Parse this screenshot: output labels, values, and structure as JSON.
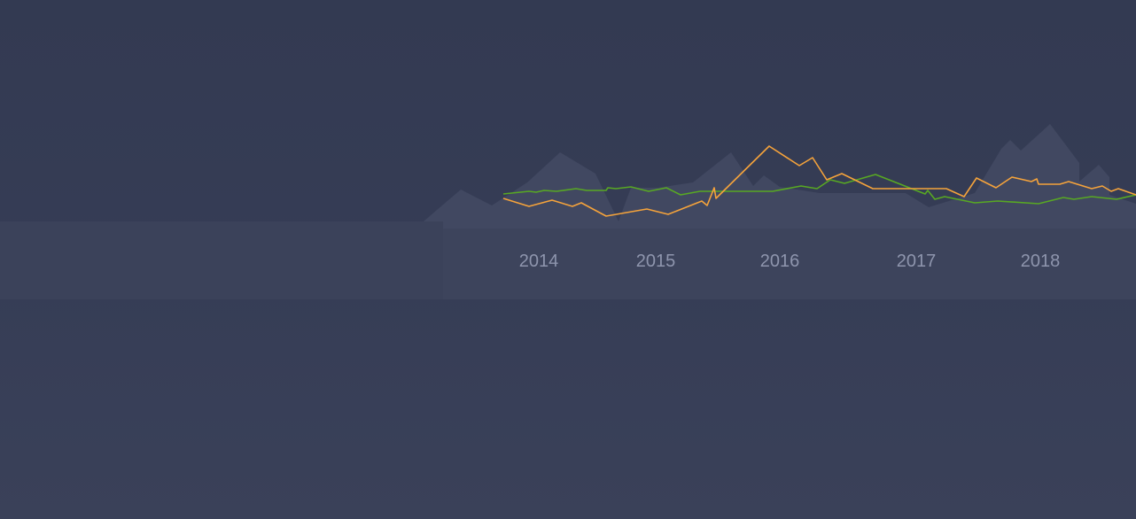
{
  "colors": {
    "background": "#343b53",
    "band": "#3a4159",
    "area": "#414861",
    "series_orange": "#f5a33b",
    "series_green": "#58a823",
    "tick_label": "#8e95ad"
  },
  "chart_data": {
    "type": "line",
    "title": "",
    "xlabel": "",
    "ylabel": "",
    "x_tick_labels": [
      "2014",
      "2015",
      "2016",
      "2017",
      "2018"
    ],
    "xlim": [
      2013.58,
      2018.82
    ],
    "ylim": [
      0,
      100
    ],
    "grid": false,
    "legend": "none",
    "series": [
      {
        "color": "#f5a33b",
        "x": [
          2013.58,
          2013.7,
          2013.85,
          2013.97,
          2014.03,
          2014.17,
          2014.4,
          2014.6,
          2014.97,
          2015.0,
          2015.03,
          2015.12,
          2015.3,
          2015.48,
          2015.6,
          2015.85,
          2015.95,
          2016.05,
          2016.13,
          2016.3,
          2016.7,
          2017.0,
          2017.08,
          2017.15,
          2017.28,
          2017.35,
          2017.43,
          2017.5,
          2017.52,
          2017.65,
          2017.72,
          2017.85,
          2017.9,
          2017.95,
          2018.0,
          2018.1
        ],
        "y": [
          62,
          58,
          61,
          58,
          60,
          54,
          57,
          54,
          61,
          58,
          66,
          63,
          81,
          72,
          76,
          66,
          68,
          65,
          64,
          64,
          64,
          64,
          63,
          61,
          67,
          64,
          68,
          66,
          66,
          66,
          67,
          65,
          66,
          64,
          65,
          64
        ]
      },
      {
        "color": "#58a823",
        "x": [
          2013.58,
          2013.72,
          2013.85,
          2014.0,
          2014.02,
          2014.15,
          2014.22,
          2014.34,
          2014.45,
          2014.6,
          2014.8,
          2014.9,
          2014.98,
          2015.02,
          2015.07,
          2015.11,
          2015.3,
          2015.5,
          2015.75,
          2016.0,
          2016.07,
          2016.12,
          2016.25,
          2016.4,
          2016.55,
          2016.65,
          2016.8,
          2016.92,
          2017.0,
          2017.1
        ],
        "y": [
          64,
          64,
          65,
          65,
          65,
          66,
          65,
          66,
          64,
          65,
          65,
          65,
          66,
          64,
          66,
          62,
          62,
          62,
          62,
          61,
          61,
          61,
          62,
          62,
          62,
          62,
          62,
          62,
          62,
          63
        ]
      }
    ]
  }
}
